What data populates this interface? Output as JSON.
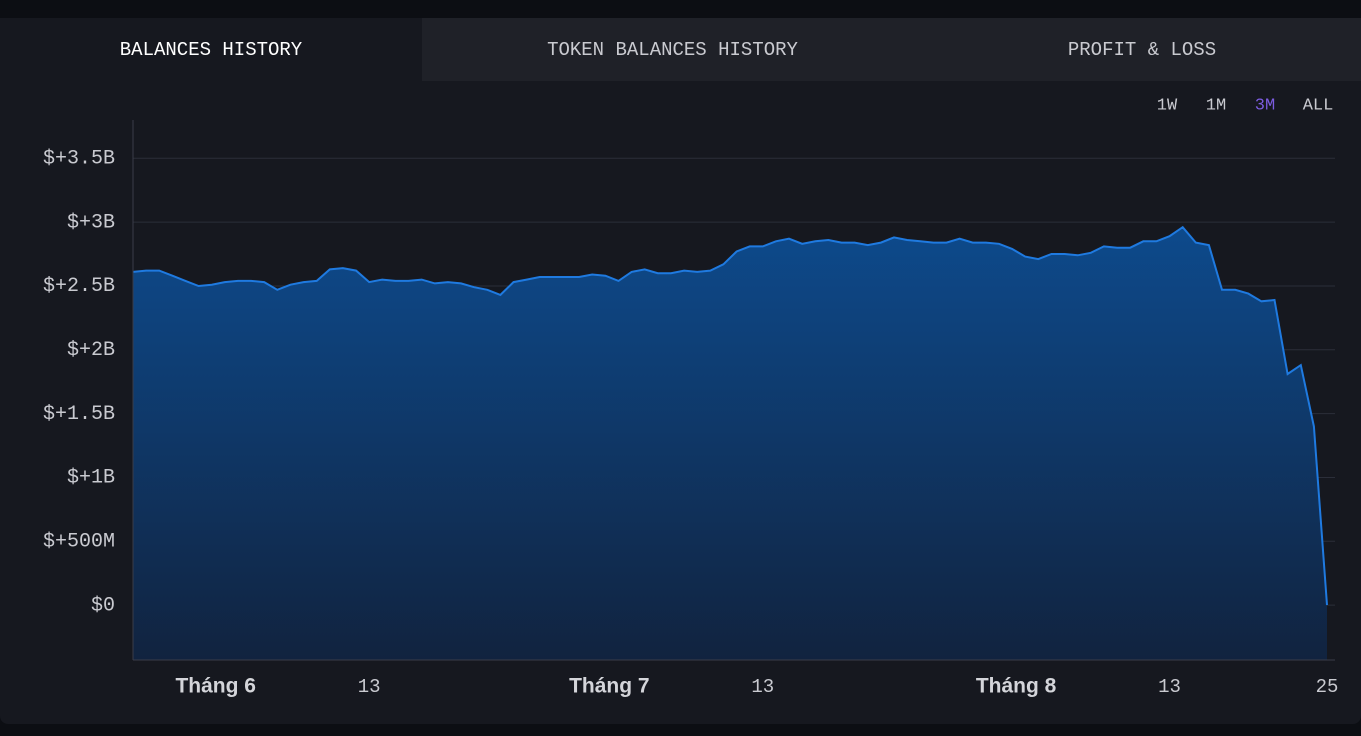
{
  "tabs": [
    "BALANCES HISTORY",
    "TOKEN BALANCES HISTORY",
    "PROFIT & LOSS"
  ],
  "active_tab": 0,
  "ranges": [
    "1W",
    "1M",
    "3M",
    "ALL"
  ],
  "active_range": 2,
  "chart_data": {
    "type": "area",
    "categories": [
      null,
      null,
      null,
      null,
      null,
      null,
      "Tháng 6",
      null,
      null,
      null,
      null,
      null,
      null,
      null,
      null,
      null,
      null,
      null,
      "13",
      null,
      null,
      null,
      null,
      null,
      null,
      null,
      null,
      null,
      null,
      null,
      null,
      null,
      null,
      null,
      null,
      null,
      "Tháng 7",
      null,
      null,
      null,
      null,
      null,
      null,
      null,
      null,
      null,
      null,
      null,
      "13",
      null,
      null,
      null,
      null,
      null,
      null,
      null,
      null,
      null,
      null,
      null,
      null,
      null,
      null,
      null,
      null,
      null,
      null,
      "Tháng 8",
      null,
      null,
      null,
      null,
      null,
      null,
      null,
      null,
      null,
      null,
      null,
      "13",
      null,
      null,
      null,
      null,
      null,
      null,
      null,
      null,
      null,
      null,
      null,
      "25"
    ],
    "values": [
      2.61,
      2.62,
      2.62,
      2.58,
      2.54,
      2.5,
      2.51,
      2.53,
      2.54,
      2.54,
      2.53,
      2.47,
      2.51,
      2.53,
      2.54,
      2.63,
      2.64,
      2.62,
      2.53,
      2.55,
      2.54,
      2.54,
      2.55,
      2.52,
      2.53,
      2.52,
      2.49,
      2.47,
      2.43,
      2.53,
      2.55,
      2.57,
      2.57,
      2.57,
      2.57,
      2.59,
      2.58,
      2.54,
      2.61,
      2.63,
      2.6,
      2.6,
      2.62,
      2.61,
      2.62,
      2.67,
      2.77,
      2.81,
      2.81,
      2.85,
      2.87,
      2.83,
      2.85,
      2.86,
      2.84,
      2.84,
      2.82,
      2.84,
      2.88,
      2.86,
      2.85,
      2.84,
      2.84,
      2.87,
      2.84,
      2.84,
      2.83,
      2.79,
      2.73,
      2.71,
      2.75,
      2.75,
      2.74,
      2.76,
      2.81,
      2.8,
      2.8,
      2.85,
      2.85,
      2.89,
      2.96,
      2.84,
      2.82,
      2.47,
      2.47,
      2.44,
      2.38,
      2.39,
      1.81,
      1.88,
      1.4,
      0
    ],
    "color": "#1f7ae0",
    "ylim": [
      -0.43,
      3.8
    ],
    "yticks": [
      {
        "value": 0,
        "label": "$0"
      },
      {
        "value": 0.5,
        "label": "$+500M"
      },
      {
        "value": 1,
        "label": "$+1B"
      },
      {
        "value": 1.5,
        "label": "$+1.5B"
      },
      {
        "value": 2,
        "label": "$+2B"
      },
      {
        "value": 2.5,
        "label": "$+2.5B"
      },
      {
        "value": 3,
        "label": "$+3B"
      },
      {
        "value": 3.5,
        "label": "$+3.5B"
      }
    ],
    "grid": true
  }
}
